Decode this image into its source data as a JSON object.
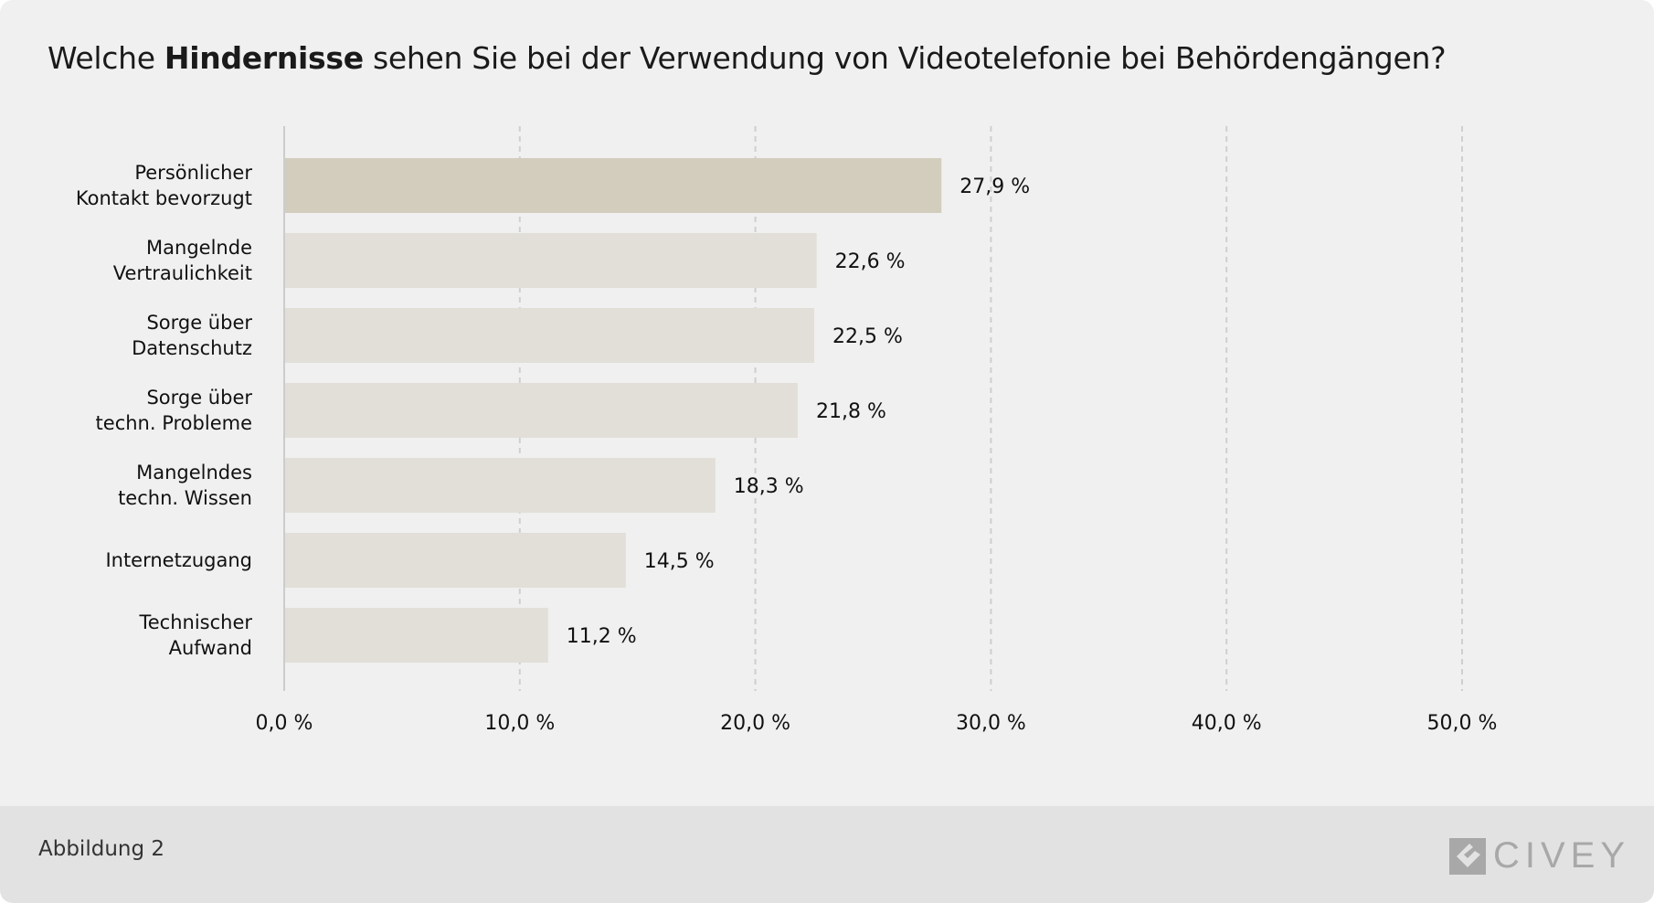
{
  "title": {
    "pre": "Welche ",
    "bold": "Hindernisse",
    "post": " sehen Sie bei der Verwendung von Videotelefonie bei Behördengängen?"
  },
  "footer": {
    "figure_label": "Abbildung 2",
    "logo": "CIVEY"
  },
  "colors": {
    "highlight_bar": "#d3cdbd",
    "bar": "#e1dfd8",
    "background": "#f0f0f0",
    "footer": "#e2e2e2"
  },
  "chart_data": {
    "type": "bar",
    "orientation": "horizontal",
    "categories": [
      [
        "Persönlicher",
        "Kontakt bevorzugt"
      ],
      [
        "Mangelnde",
        "Vertraulichkeit"
      ],
      [
        "Sorge über",
        "Datenschutz"
      ],
      [
        "Sorge über",
        "techn. Probleme"
      ],
      [
        "Mangelndes",
        "techn. Wissen"
      ],
      [
        "Internetzugang"
      ],
      [
        "Technischer",
        "Aufwand"
      ]
    ],
    "values": [
      27.9,
      22.6,
      22.5,
      21.8,
      18.3,
      14.5,
      11.2
    ],
    "data_labels": [
      "27,9 %",
      "22,6 %",
      "22,5 %",
      "21,8 %",
      "18,3 %",
      "14,5 %",
      "11,2 %"
    ],
    "xlim": [
      0,
      50
    ],
    "xticks": [
      0,
      10,
      20,
      30,
      40,
      50
    ],
    "xtick_labels": [
      "0,0 %",
      "10,0 %",
      "20,0 %",
      "30,0 %",
      "40,0 %",
      "50,0 %"
    ],
    "grid": "vertical dashed",
    "highlighted_index": 0
  }
}
